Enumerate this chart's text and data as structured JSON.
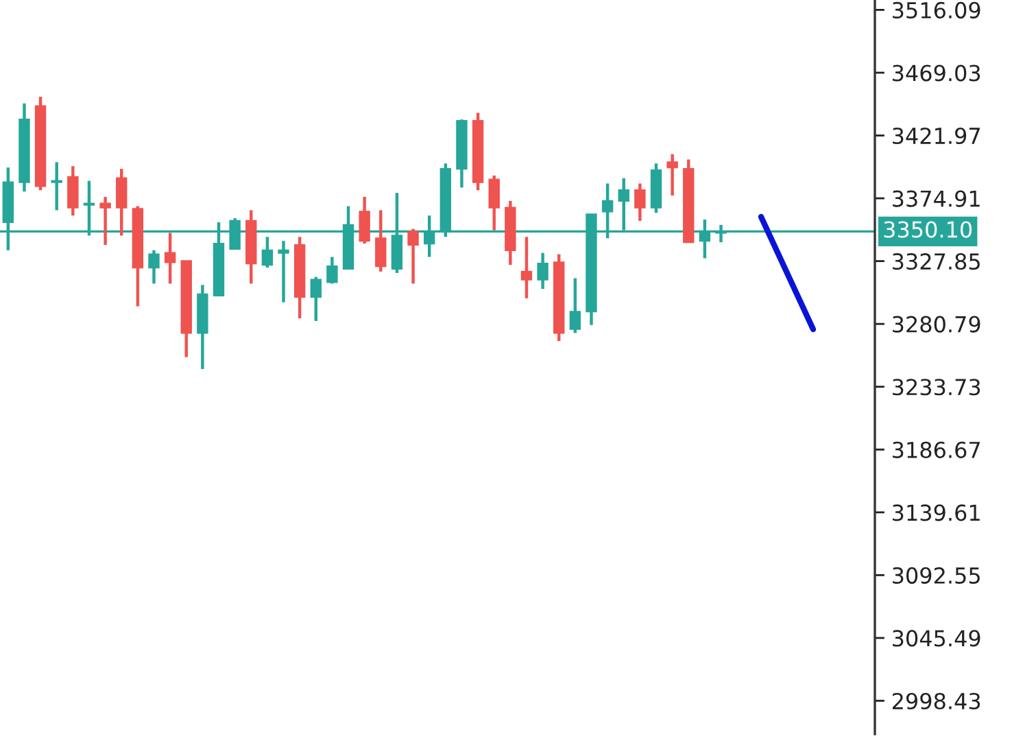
{
  "chart_data": {
    "type": "candlestick",
    "categories": [
      null,
      null,
      null,
      null,
      null,
      null,
      null,
      null,
      null,
      null,
      null,
      null,
      null,
      null,
      null,
      null,
      null,
      null,
      null,
      null,
      null,
      null,
      null,
      null,
      null,
      null,
      null,
      null,
      null,
      null,
      null,
      null,
      null,
      null,
      null,
      null,
      null,
      null,
      null,
      null,
      null,
      null,
      null,
      null,
      null,
      null,
      null,
      null,
      null,
      null,
      null,
      null,
      null,
      null
    ],
    "ohlc": [
      [
        3357,
        3398,
        3336,
        3387
      ],
      [
        3387,
        3446,
        3380,
        3434
      ],
      [
        3444,
        3451,
        3381,
        3384
      ],
      [
        3387,
        3402,
        3366,
        3388
      ],
      [
        3391,
        3399,
        3362,
        3368
      ],
      [
        3370,
        3388,
        3347,
        3371
      ],
      [
        3371,
        3376,
        3340,
        3368
      ],
      [
        3390,
        3397,
        3347,
        3368
      ],
      [
        3367,
        3369,
        3294,
        3323
      ],
      [
        3323,
        3336,
        3311,
        3333
      ],
      [
        3334,
        3349,
        3311,
        3327
      ],
      [
        3328,
        3328,
        3256,
        3274
      ],
      [
        3274,
        3310,
        3247,
        3303
      ],
      [
        3302,
        3357,
        3302,
        3341
      ],
      [
        3337,
        3360,
        3337,
        3358
      ],
      [
        3358,
        3366,
        3311,
        3326
      ],
      [
        3325,
        3346,
        3323,
        3336
      ],
      [
        3334,
        3343,
        3297,
        3336
      ],
      [
        3340,
        3346,
        3285,
        3301
      ],
      [
        3301,
        3316,
        3283,
        3314
      ],
      [
        3312,
        3331,
        3311,
        3324
      ],
      [
        3322,
        3369,
        3322,
        3355
      ],
      [
        3365,
        3376,
        3341,
        3343
      ],
      [
        3345,
        3366,
        3320,
        3324
      ],
      [
        3322,
        3379,
        3319,
        3347
      ],
      [
        3350,
        3352,
        3311,
        3340
      ],
      [
        3341,
        3362,
        3331,
        3350
      ],
      [
        3351,
        3401,
        3346,
        3397
      ],
      [
        3397,
        3434,
        3383,
        3433
      ],
      [
        3433,
        3439,
        3381,
        3387
      ],
      [
        3389,
        3392,
        3351,
        3368
      ],
      [
        3368,
        3373,
        3325,
        3336
      ],
      [
        3320,
        3346,
        3300,
        3314
      ],
      [
        3314,
        3334,
        3307,
        3326
      ],
      [
        3327,
        3333,
        3268,
        3274
      ],
      [
        3277,
        3315,
        3274,
        3290
      ],
      [
        3290,
        3363,
        3280,
        3363
      ],
      [
        3365,
        3386,
        3345,
        3373
      ],
      [
        3373,
        3390,
        3351,
        3381
      ],
      [
        3381,
        3386,
        3358,
        3368
      ],
      [
        3368,
        3401,
        3364,
        3396
      ],
      [
        3402,
        3408,
        3377,
        3398
      ],
      [
        3397,
        3404,
        3342,
        3342
      ],
      [
        3343,
        3359,
        3330,
        3349
      ],
      [
        3349,
        3355,
        3342,
        3350
      ],
      null,
      null,
      null,
      null,
      null,
      null,
      null,
      null,
      null
    ],
    "colors": [
      "#26a69a",
      "#26a69a",
      "#ef5350",
      "#26a69a",
      "#ef5350",
      "#26a69a",
      "#ef5350",
      "#ef5350",
      "#ef5350",
      "#26a69a",
      "#ef5350",
      "#ef5350",
      "#26a69a",
      "#26a69a",
      "#26a69a",
      "#ef5350",
      "#26a69a",
      "#26a69a",
      "#ef5350",
      "#26a69a",
      "#26a69a",
      "#26a69a",
      "#ef5350",
      "#ef5350",
      "#26a69a",
      "#ef5350",
      "#26a69a",
      "#26a69a",
      "#26a69a",
      "#ef5350",
      "#ef5350",
      "#ef5350",
      "#ef5350",
      "#26a69a",
      "#ef5350",
      "#26a69a",
      "#26a69a",
      "#26a69a",
      "#26a69a",
      "#ef5350",
      "#26a69a",
      "#ef5350",
      "#ef5350",
      "#26a69a",
      "#26a69a",
      null,
      null,
      null,
      null,
      null,
      null,
      null,
      null,
      null
    ],
    "ylim": [
      2973.5,
      3523.5
    ],
    "yticks": [
      2998.43,
      3045.49,
      3092.55,
      3139.61,
      3186.67,
      3233.73,
      3280.79,
      3327.85,
      3374.91,
      3421.97,
      3469.03,
      3516.09
    ],
    "ref_lines": [
      {
        "axis": "y",
        "value": 3350.1,
        "label": "3350.10",
        "color": "#26a69a"
      }
    ],
    "tick_labels": "y",
    "grid": false
  }
}
